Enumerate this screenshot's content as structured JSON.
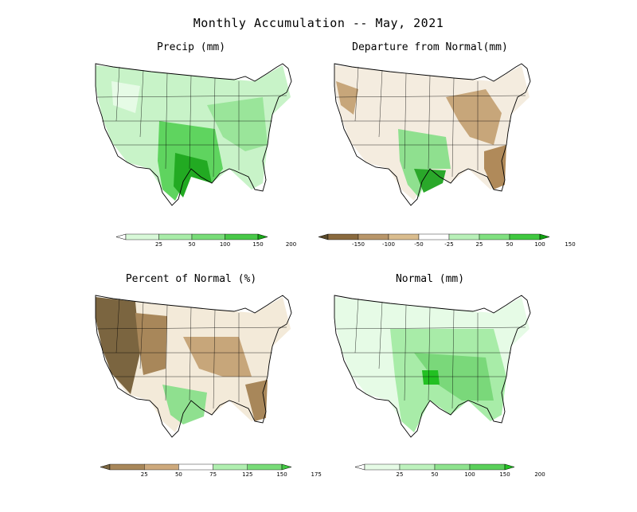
{
  "figure": {
    "title": "Monthly Accumulation -- May, 2021"
  },
  "panels": [
    {
      "id": "precip",
      "title": "Precip (mm)",
      "colorbar": {
        "ticks": [
          "25",
          "50",
          "100",
          "150",
          "200"
        ],
        "colors": [
          "#ffffff",
          "#d8f8d8",
          "#a8eca8",
          "#78dc78",
          "#48c848",
          "#18a818"
        ]
      }
    },
    {
      "id": "departure",
      "title": "Departure from Normal(mm)",
      "colorbar": {
        "ticks": [
          "-150",
          "-100",
          "-50",
          "-25",
          "25",
          "50",
          "100",
          "150"
        ],
        "colors": [
          "#5a4a2a",
          "#8a6a3e",
          "#b8966a",
          "#d9bc8e",
          "#ffffff",
          "#b8f0b8",
          "#80e080",
          "#40c840",
          "#10a010"
        ]
      }
    },
    {
      "id": "percent",
      "title": "Percent of Normal (%)",
      "colorbar": {
        "ticks": [
          "25",
          "50",
          "75",
          "125",
          "150",
          "175"
        ],
        "colors": [
          "#7a6540",
          "#a8875a",
          "#cda97c",
          "#ffffff",
          "#b0efb0",
          "#78dc78",
          "#40c840"
        ]
      }
    },
    {
      "id": "normal",
      "title": "Normal (mm)",
      "colorbar": {
        "ticks": [
          "25",
          "50",
          "100",
          "150",
          "200"
        ],
        "colors": [
          "#ffffff",
          "#e6fbe6",
          "#bdf2bd",
          "#8ee38e",
          "#5ad05a",
          "#22c022"
        ]
      }
    }
  ]
}
